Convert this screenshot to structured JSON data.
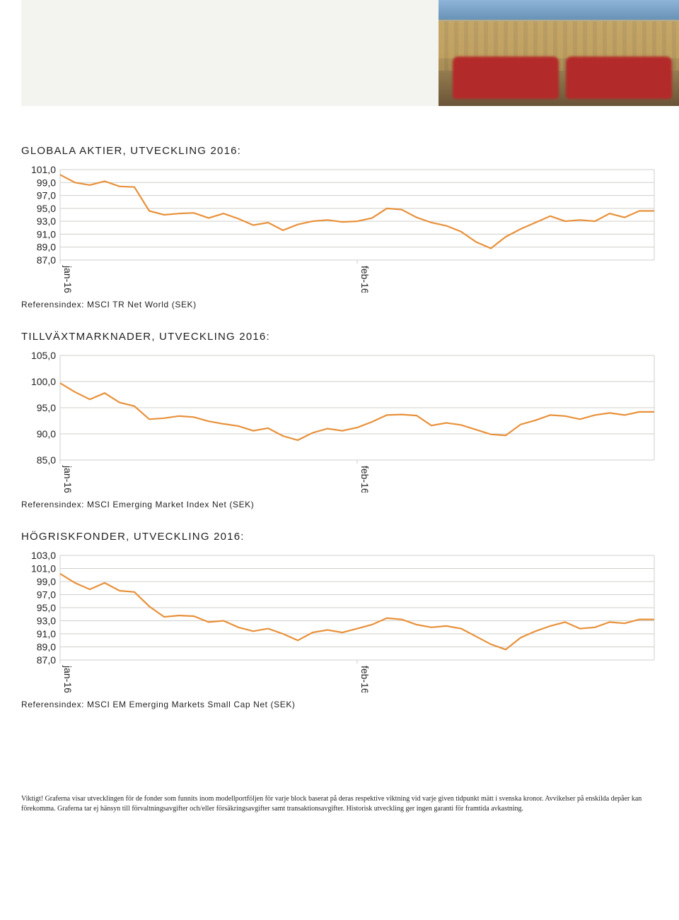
{
  "header": {
    "has_grey_block": true,
    "has_image": true
  },
  "chart1": {
    "type": "line",
    "title": "GLOBALA AKTIER, UTVECKLING 2016:",
    "ref": "Referensindex: MSCI TR Net World (SEK)",
    "y_ticks": [
      "101,0",
      "99,0",
      "97,0",
      "95,0",
      "93,0",
      "91,0",
      "89,0",
      "87,0"
    ],
    "ylim_top": 101,
    "ylim_bottom": 87,
    "x_ticks": [
      {
        "label": "jan-16",
        "frac": 0.0
      },
      {
        "label": "feb-16",
        "frac": 0.5
      }
    ],
    "line_color": "#e8913a",
    "grid_color": "#cfcfcb",
    "background": "#ffffff",
    "values": [
      100.2,
      99.0,
      98.6,
      99.2,
      98.4,
      98.3,
      94.6,
      94.0,
      94.2,
      94.3,
      93.5,
      94.2,
      93.4,
      92.4,
      92.8,
      91.6,
      92.5,
      93.0,
      93.2,
      92.9,
      93.0,
      93.5,
      95.0,
      94.8,
      93.6,
      92.8,
      92.3,
      91.4,
      89.8,
      88.8,
      90.6,
      91.8,
      92.8,
      93.8,
      93.0,
      93.2,
      93.0,
      94.2,
      93.6,
      94.6,
      94.6
    ]
  },
  "chart2": {
    "type": "line",
    "title": "TILLVÄXTMARKNADER, UTVECKLING 2016:",
    "ref": "Referensindex: MSCI Emerging Market Index Net (SEK)",
    "y_ticks": [
      "105,0",
      "100,0",
      "95,0",
      "90,0",
      "85,0"
    ],
    "ylim_top": 105,
    "ylim_bottom": 85,
    "x_ticks": [
      {
        "label": "jan-16",
        "frac": 0.0
      },
      {
        "label": "feb-16",
        "frac": 0.5
      }
    ],
    "line_color": "#e8913a",
    "grid_color": "#cfcfcb",
    "background": "#ffffff",
    "values": [
      99.7,
      98.0,
      96.6,
      97.8,
      96.0,
      95.3,
      92.8,
      93.0,
      93.4,
      93.2,
      92.4,
      91.9,
      91.5,
      90.6,
      91.1,
      89.6,
      88.8,
      90.2,
      91.0,
      90.6,
      91.2,
      92.3,
      93.6,
      93.7,
      93.5,
      91.6,
      92.1,
      91.7,
      90.8,
      89.9,
      89.7,
      91.8,
      92.6,
      93.6,
      93.4,
      92.8,
      93.6,
      94.0,
      93.6,
      94.2,
      94.2
    ]
  },
  "chart3": {
    "type": "line",
    "title": "HÖGRISKFONDER, UTVECKLING 2016:",
    "ref": "Referensindex: MSCI EM Emerging Markets Small Cap Net (SEK)",
    "y_ticks": [
      "103,0",
      "101,0",
      "99,0",
      "97,0",
      "95,0",
      "93,0",
      "91,0",
      "89,0",
      "87,0"
    ],
    "ylim_top": 103,
    "ylim_bottom": 87,
    "x_ticks": [
      {
        "label": "jan-16",
        "frac": 0.0
      },
      {
        "label": "feb-16",
        "frac": 0.5
      }
    ],
    "line_color": "#e8913a",
    "grid_color": "#cfcfcb",
    "background": "#ffffff",
    "values": [
      100.2,
      98.8,
      97.8,
      98.8,
      97.6,
      97.4,
      95.2,
      93.6,
      93.8,
      93.7,
      92.8,
      93.0,
      92.0,
      91.4,
      91.8,
      91.0,
      90.0,
      91.2,
      91.6,
      91.2,
      91.8,
      92.4,
      93.4,
      93.2,
      92.4,
      92.0,
      92.2,
      91.8,
      90.6,
      89.4,
      88.6,
      90.4,
      91.4,
      92.2,
      92.8,
      91.8,
      92.0,
      92.8,
      92.6,
      93.2,
      93.2
    ]
  },
  "footnote": "Viktigt! Graferna visar utvecklingen för de fonder som funnits inom modellportföljen för varje block baserat på deras respektive viktning vid varje given tidpunkt mätt i svenska kronor. Avvikelser på enskilda depåer kan förekomma. Graferna tar ej hänsyn till förvaltningsavgifter och/eller försäkringsavgifter samt transaktionsavgifter. Historisk utveckling ger ingen garanti för framtida avkastning."
}
